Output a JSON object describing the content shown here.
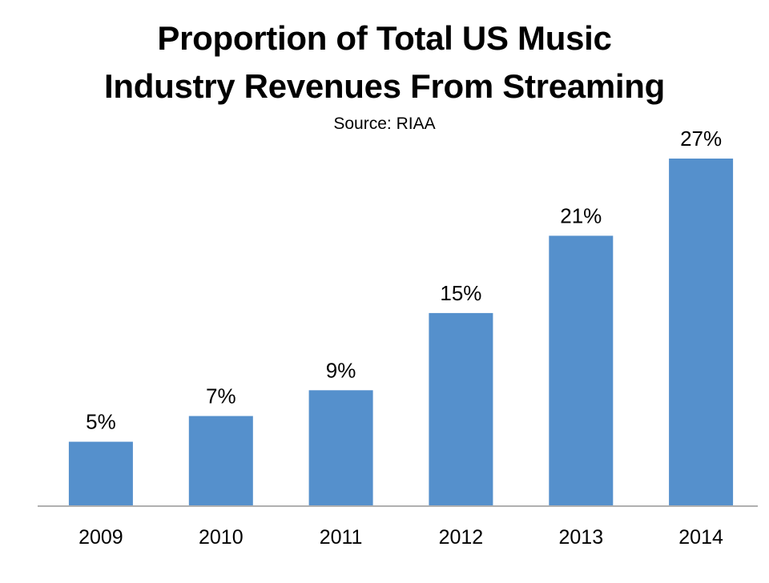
{
  "chart_data": {
    "type": "bar",
    "title_line1": "Proportion of Total US Music",
    "title_line2": "Industry Revenues From Streaming",
    "subtitle": "Source: RIAA",
    "categories": [
      "2009",
      "2010",
      "2011",
      "2012",
      "2013",
      "2014"
    ],
    "values": [
      5,
      7,
      9,
      15,
      21,
      27
    ],
    "data_labels": [
      "5%",
      "7%",
      "9%",
      "15%",
      "21%",
      "27%"
    ],
    "ylim": [
      0,
      27
    ],
    "grid": false,
    "legend": "none",
    "bar_color": "#5590cc",
    "axis_color": "#b0b0b0"
  }
}
